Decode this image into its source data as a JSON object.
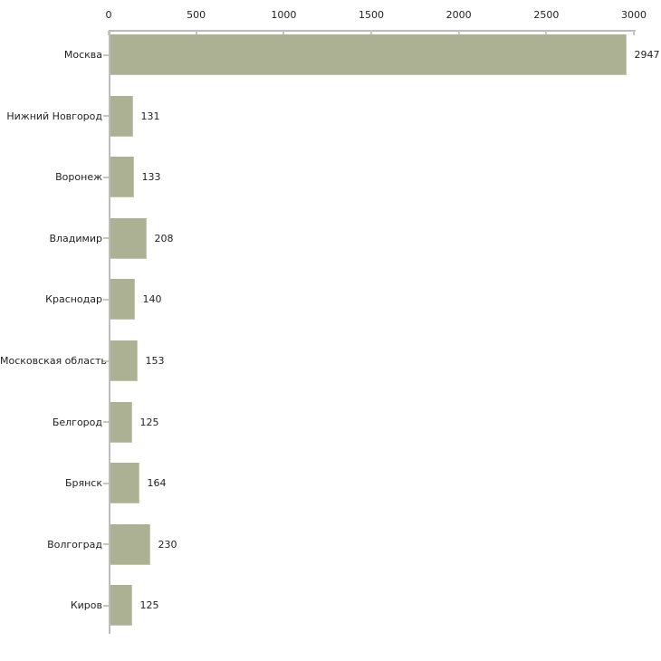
{
  "chart_data": {
    "type": "bar",
    "orientation": "horizontal",
    "title": "",
    "xlabel": "",
    "ylabel": "",
    "categories": [
      "Москва",
      "Нижний Новгород",
      "Воронеж",
      "Владимир",
      "Краснодар",
      "Московская область",
      "Белгород",
      "Брянск",
      "Волгоград",
      "Киров"
    ],
    "values": [
      2947,
      131,
      133,
      208,
      140,
      153,
      125,
      164,
      230,
      125
    ],
    "value_labels": [
      "2947",
      "131",
      "133",
      "208",
      "140",
      "153",
      "125",
      "164",
      "230",
      "125"
    ],
    "x_axis": {
      "position": "top",
      "ticks": [
        0,
        500,
        1000,
        1500,
        2000,
        2500,
        3000
      ],
      "tick_labels": [
        "0",
        "500",
        "1000",
        "1500",
        "2000",
        "2500",
        "3000"
      ],
      "range": [
        0,
        3000
      ]
    },
    "grid": false,
    "legend": null
  },
  "colors": {
    "background": "#ffffff",
    "bar": "#acb194",
    "bar_edge": "#c3c7ac",
    "axis_line": "#bcbcbc",
    "tick": "#c6cab0",
    "text": "#1f1f1f"
  }
}
